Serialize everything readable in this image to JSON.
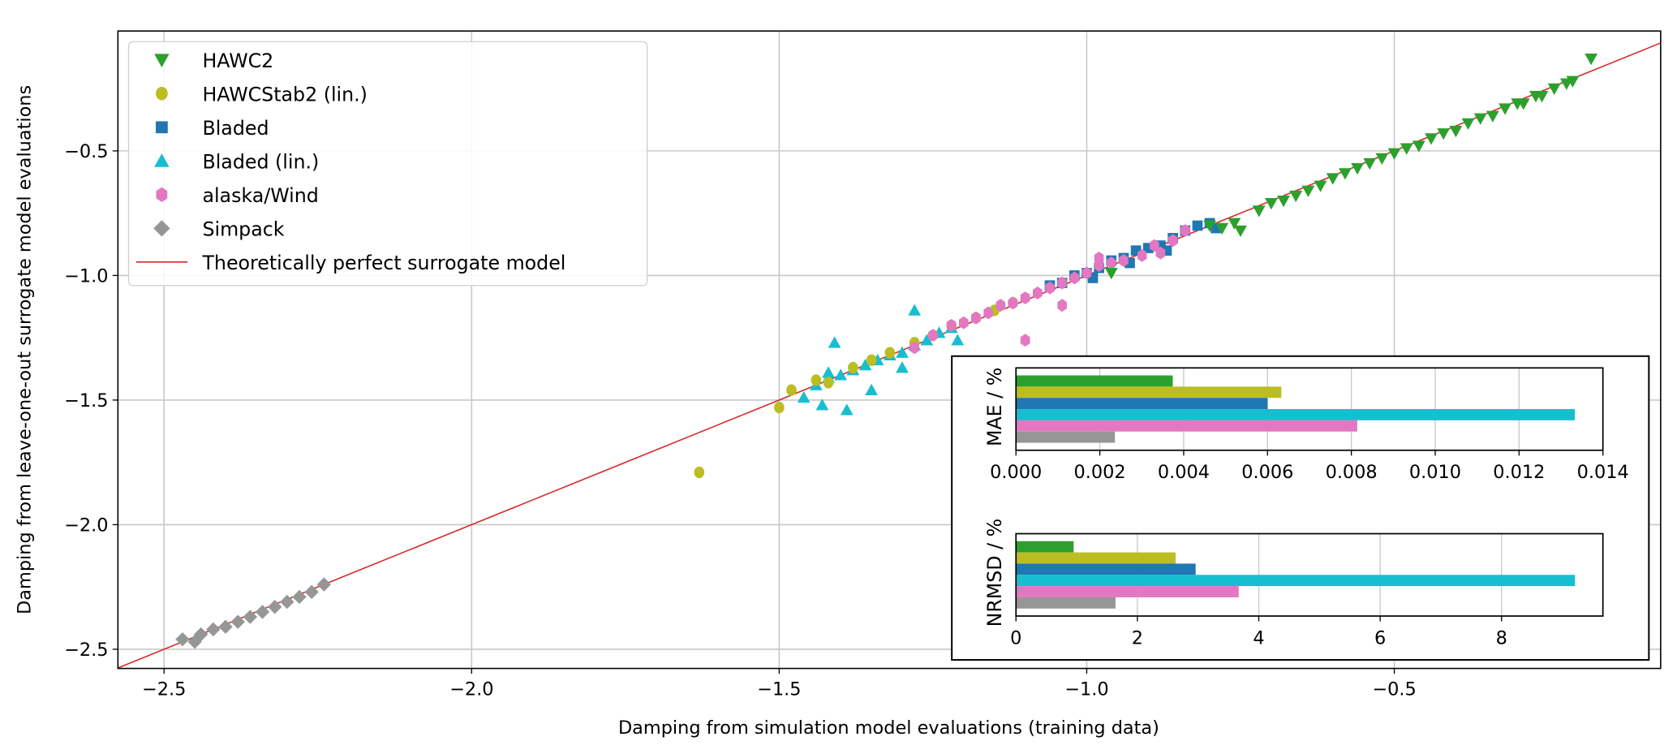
{
  "chart_data": [
    {
      "type": "scatter",
      "title": "",
      "xlabel": "Damping from simulation model evaluations (training data)",
      "ylabel": "Damping from leave-one-out surrogate model evaluations",
      "xlim": [
        -2.575,
        -0.067
      ],
      "ylim": [
        -2.577,
        -0.019
      ],
      "xticks": [
        -2.5,
        -2.0,
        -1.5,
        -1.0,
        -0.5
      ],
      "xtick_labels": [
        "−2.5",
        "−2.0",
        "−1.5",
        "−1.0",
        "−0.5"
      ],
      "yticks": [
        -2.5,
        -2.0,
        -1.5,
        -1.0,
        -0.5
      ],
      "ytick_labels": [
        "−2.5",
        "−2.0",
        "−1.5",
        "−1.0",
        "−0.5"
      ],
      "grid": true,
      "legend_position": "top-left",
      "reference_line": {
        "name": "Theoretically perfect surrogate model",
        "color": "#d62728",
        "equation": "y = x"
      },
      "series": [
        {
          "name": "HAWC2",
          "marker": "triangle-down",
          "color": "#2ca02c",
          "points": [
            [
              -0.8,
              -0.8
            ],
            [
              -0.78,
              -0.81
            ],
            [
              -0.76,
              -0.79
            ],
            [
              -0.75,
              -0.82
            ],
            [
              -0.72,
              -0.74
            ],
            [
              -0.7,
              -0.71
            ],
            [
              -0.68,
              -0.7
            ],
            [
              -0.66,
              -0.68
            ],
            [
              -0.64,
              -0.66
            ],
            [
              -0.62,
              -0.64
            ],
            [
              -0.6,
              -0.61
            ],
            [
              -0.58,
              -0.59
            ],
            [
              -0.56,
              -0.57
            ],
            [
              -0.54,
              -0.55
            ],
            [
              -0.52,
              -0.53
            ],
            [
              -0.5,
              -0.51
            ],
            [
              -0.48,
              -0.49
            ],
            [
              -0.46,
              -0.48
            ],
            [
              -0.44,
              -0.45
            ],
            [
              -0.42,
              -0.43
            ],
            [
              -0.4,
              -0.42
            ],
            [
              -0.38,
              -0.39
            ],
            [
              -0.36,
              -0.37
            ],
            [
              -0.34,
              -0.36
            ],
            [
              -0.32,
              -0.33
            ],
            [
              -0.3,
              -0.31
            ],
            [
              -0.29,
              -0.31
            ],
            [
              -0.27,
              -0.28
            ],
            [
              -0.26,
              -0.28
            ],
            [
              -0.24,
              -0.25
            ],
            [
              -0.22,
              -0.23
            ],
            [
              -0.21,
              -0.22
            ],
            [
              -0.18,
              -0.13
            ],
            [
              -0.96,
              -0.99
            ]
          ]
        },
        {
          "name": "HAWCStab2 (lin.)",
          "marker": "circle",
          "color": "#bcbd22",
          "points": [
            [
              -1.63,
              -1.79
            ],
            [
              -1.5,
              -1.53
            ],
            [
              -1.48,
              -1.46
            ],
            [
              -1.44,
              -1.42
            ],
            [
              -1.42,
              -1.43
            ],
            [
              -1.38,
              -1.37
            ],
            [
              -1.35,
              -1.34
            ],
            [
              -1.32,
              -1.31
            ],
            [
              -1.28,
              -1.27
            ],
            [
              -1.25,
              -1.24
            ],
            [
              -1.22,
              -1.2
            ],
            [
              -1.18,
              -1.17
            ],
            [
              -1.15,
              -1.14
            ],
            [
              -1.12,
              -1.11
            ]
          ]
        },
        {
          "name": "Bladed",
          "marker": "square",
          "color": "#1f77b4",
          "points": [
            [
              -1.06,
              -1.04
            ],
            [
              -1.04,
              -1.03
            ],
            [
              -1.02,
              -1.0
            ],
            [
              -1.0,
              -0.99
            ],
            [
              -0.98,
              -0.97
            ],
            [
              -0.96,
              -0.94
            ],
            [
              -0.94,
              -0.93
            ],
            [
              -0.92,
              -0.9
            ],
            [
              -0.9,
              -0.89
            ],
            [
              -0.88,
              -0.88
            ],
            [
              -0.86,
              -0.85
            ],
            [
              -0.84,
              -0.82
            ],
            [
              -0.82,
              -0.8
            ],
            [
              -0.8,
              -0.79
            ],
            [
              -0.79,
              -0.81
            ],
            [
              -0.87,
              -0.9
            ],
            [
              -0.93,
              -0.95
            ],
            [
              -0.99,
              -1.01
            ]
          ]
        },
        {
          "name": "Bladed (lin.)",
          "marker": "triangle-up",
          "color": "#17becf",
          "points": [
            [
              -1.46,
              -1.49
            ],
            [
              -1.44,
              -1.44
            ],
            [
              -1.42,
              -1.41
            ],
            [
              -1.4,
              -1.4
            ],
            [
              -1.38,
              -1.38
            ],
            [
              -1.36,
              -1.36
            ],
            [
              -1.34,
              -1.34
            ],
            [
              -1.32,
              -1.32
            ],
            [
              -1.3,
              -1.31
            ],
            [
              -1.28,
              -1.28
            ],
            [
              -1.26,
              -1.26
            ],
            [
              -1.24,
              -1.23
            ],
            [
              -1.22,
              -1.21
            ],
            [
              -1.41,
              -1.27
            ],
            [
              -1.28,
              -1.14
            ],
            [
              -1.43,
              -1.52
            ],
            [
              -1.39,
              -1.54
            ],
            [
              -1.35,
              -1.46
            ],
            [
              -1.42,
              -1.39
            ],
            [
              -1.3,
              -1.37
            ],
            [
              -1.21,
              -1.26
            ]
          ]
        },
        {
          "name": "alaska/Wind",
          "marker": "hexagon",
          "color": "#e377c2",
          "points": [
            [
              -1.28,
              -1.29
            ],
            [
              -1.25,
              -1.24
            ],
            [
              -1.22,
              -1.2
            ],
            [
              -1.2,
              -1.19
            ],
            [
              -1.18,
              -1.17
            ],
            [
              -1.16,
              -1.15
            ],
            [
              -1.14,
              -1.12
            ],
            [
              -1.12,
              -1.11
            ],
            [
              -1.1,
              -1.09
            ],
            [
              -1.08,
              -1.07
            ],
            [
              -1.06,
              -1.05
            ],
            [
              -1.04,
              -1.03
            ],
            [
              -1.02,
              -1.01
            ],
            [
              -1.0,
              -0.99
            ],
            [
              -0.98,
              -0.96
            ],
            [
              -0.96,
              -0.95
            ],
            [
              -0.94,
              -0.94
            ],
            [
              -0.91,
              -0.92
            ],
            [
              -0.89,
              -0.88
            ],
            [
              -0.86,
              -0.86
            ],
            [
              -0.84,
              -0.82
            ],
            [
              -1.1,
              -1.26
            ],
            [
              -1.04,
              -1.12
            ],
            [
              -0.98,
              -0.93
            ],
            [
              -0.88,
              -0.91
            ]
          ]
        },
        {
          "name": "Simpack",
          "marker": "diamond",
          "color": "#969696",
          "points": [
            [
              -2.47,
              -2.46
            ],
            [
              -2.45,
              -2.47
            ],
            [
              -2.44,
              -2.44
            ],
            [
              -2.42,
              -2.42
            ],
            [
              -2.4,
              -2.41
            ],
            [
              -2.38,
              -2.39
            ],
            [
              -2.36,
              -2.37
            ],
            [
              -2.34,
              -2.35
            ],
            [
              -2.32,
              -2.33
            ],
            [
              -2.3,
              -2.31
            ],
            [
              -2.28,
              -2.29
            ],
            [
              -2.26,
              -2.27
            ],
            [
              -2.24,
              -2.24
            ]
          ]
        }
      ]
    },
    {
      "type": "bar",
      "orientation": "horizontal",
      "title": "",
      "ylabel": "MAE / %",
      "xlabel": "",
      "xlim": [
        0,
        0.014
      ],
      "xticks": [
        0.0,
        0.002,
        0.004,
        0.006,
        0.008,
        0.01,
        0.012,
        0.014
      ],
      "xtick_labels": [
        "0.000",
        "0.002",
        "0.004",
        "0.006",
        "0.008",
        "0.010",
        "0.012",
        "0.014"
      ],
      "grid": true,
      "categories": [
        "HAWC2",
        "HAWCStab2 (lin.)",
        "Bladed",
        "Bladed (lin.)",
        "alaska/Wind",
        "Simpack"
      ],
      "values": [
        0.00374,
        0.00633,
        0.006,
        0.01333,
        0.00814,
        0.00236
      ],
      "colors": [
        "#2ca02c",
        "#bcbd22",
        "#1f77b4",
        "#17becf",
        "#e377c2",
        "#969696"
      ]
    },
    {
      "type": "bar",
      "orientation": "horizontal",
      "title": "",
      "ylabel": "NRMSD / %",
      "xlabel": "",
      "xlim": [
        0,
        9.67
      ],
      "xticks": [
        0,
        2,
        4,
        6,
        8
      ],
      "xtick_labels": [
        "0",
        "2",
        "4",
        "6",
        "8"
      ],
      "grid": true,
      "categories": [
        "HAWC2",
        "HAWCStab2 (lin.)",
        "Bladed",
        "Bladed (lin.)",
        "alaska/Wind",
        "Simpack"
      ],
      "values": [
        0.95,
        2.63,
        2.96,
        9.21,
        3.67,
        1.64
      ],
      "colors": [
        "#2ca02c",
        "#bcbd22",
        "#1f77b4",
        "#17becf",
        "#e377c2",
        "#969696"
      ]
    }
  ]
}
